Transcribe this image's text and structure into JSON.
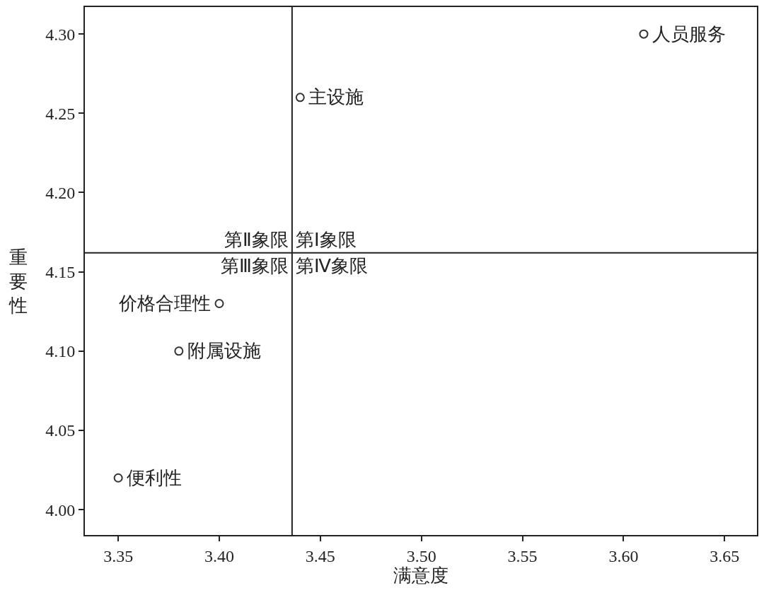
{
  "chart_data": {
    "type": "scatter",
    "xlabel": "满意度",
    "ylabel": "重要性",
    "x": [
      3.61,
      3.44,
      3.4,
      3.38,
      3.35
    ],
    "series": [
      {
        "color": "#333333",
        "values": [
          4.3,
          4.26,
          4.13,
          4.1,
          4.02
        ]
      }
    ],
    "marker": "circle",
    "xlim": [
      3.3335,
      3.666
    ],
    "ylim": [
      3.984,
      4.317
    ],
    "xticks": [
      {
        "value": 3.35,
        "label": "3.35"
      },
      {
        "value": 3.4,
        "label": "3.40"
      },
      {
        "value": 3.45,
        "label": "3.45"
      },
      {
        "value": 3.5,
        "label": "3.50"
      },
      {
        "value": 3.55,
        "label": "3.55"
      },
      {
        "value": 3.6,
        "label": "3.60"
      },
      {
        "value": 3.65,
        "label": "3.65"
      }
    ],
    "yticks": [
      {
        "value": 4.0,
        "label": "4.00"
      },
      {
        "value": 4.05,
        "label": "4.05"
      },
      {
        "value": 4.1,
        "label": "4.10"
      },
      {
        "value": 4.15,
        "label": "4.15"
      },
      {
        "value": 4.2,
        "label": "4.20"
      },
      {
        "value": 4.25,
        "label": "4.25"
      },
      {
        "value": 4.3,
        "label": "4.30"
      }
    ],
    "ref_lines": [
      {
        "axis": "x",
        "value": 3.436,
        "color": "#222222"
      },
      {
        "axis": "y",
        "value": 4.162,
        "color": "#222222"
      }
    ],
    "annotations": [
      {
        "text": "人员服务",
        "x": 3.61,
        "y": 4.3
      },
      {
        "text": "主设施",
        "x": 3.44,
        "y": 4.26
      },
      {
        "text": "价格合理性",
        "x": 3.4,
        "y": 4.13
      },
      {
        "text": "附属设施",
        "x": 3.38,
        "y": 4.1
      },
      {
        "text": "便利性",
        "x": 3.35,
        "y": 4.02
      },
      "第Ⅱ象限",
      "第Ⅰ象限",
      "第Ⅲ象限",
      "第Ⅳ象限"
    ]
  }
}
